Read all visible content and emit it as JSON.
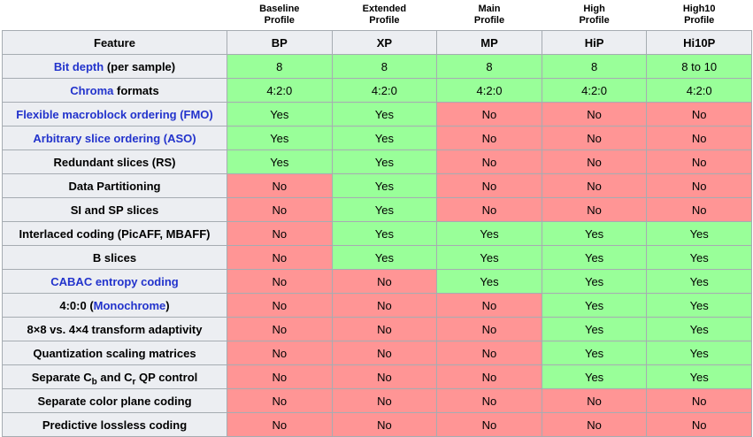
{
  "colors": {
    "yes_bg": "#99ff99",
    "no_bg": "#ff9595",
    "header_bg": "#eceef2",
    "border": "#a6acb2",
    "link": "#2233cc"
  },
  "table": {
    "feature_header": "Feature",
    "columns": [
      {
        "title": "Baseline\nProfile",
        "abbr": "BP"
      },
      {
        "title": "Extended\nProfile",
        "abbr": "XP"
      },
      {
        "title": "Main\nProfile",
        "abbr": "MP"
      },
      {
        "title": "High\nProfile",
        "abbr": "HiP"
      },
      {
        "title": "High10\nProfile",
        "abbr": "Hi10P"
      }
    ],
    "rows": [
      {
        "feature": [
          {
            "t": "Bit depth",
            "link": true
          },
          {
            "t": " (per sample)"
          }
        ],
        "values": [
          "8",
          "8",
          "8",
          "8",
          "8 to 10"
        ]
      },
      {
        "feature": [
          {
            "t": "Chroma",
            "link": true
          },
          {
            "t": " formats"
          }
        ],
        "values": [
          "4:2:0",
          "4:2:0",
          "4:2:0",
          "4:2:0",
          "4:2:0"
        ]
      },
      {
        "feature": [
          {
            "t": "Flexible macroblock ordering (FMO)",
            "link": true
          }
        ],
        "values": [
          "Yes",
          "Yes",
          "No",
          "No",
          "No"
        ]
      },
      {
        "feature": [
          {
            "t": "Arbitrary slice ordering (ASO)",
            "link": true
          }
        ],
        "values": [
          "Yes",
          "Yes",
          "No",
          "No",
          "No"
        ]
      },
      {
        "feature": [
          {
            "t": "Redundant slices (RS)"
          }
        ],
        "values": [
          "Yes",
          "Yes",
          "No",
          "No",
          "No"
        ]
      },
      {
        "feature": [
          {
            "t": "Data Partitioning"
          }
        ],
        "values": [
          "No",
          "Yes",
          "No",
          "No",
          "No"
        ]
      },
      {
        "feature": [
          {
            "t": "SI and SP slices"
          }
        ],
        "values": [
          "No",
          "Yes",
          "No",
          "No",
          "No"
        ]
      },
      {
        "feature": [
          {
            "t": "Interlaced coding (PicAFF, MBAFF)"
          }
        ],
        "values": [
          "No",
          "Yes",
          "Yes",
          "Yes",
          "Yes"
        ]
      },
      {
        "feature": [
          {
            "t": "B slices"
          }
        ],
        "values": [
          "No",
          "Yes",
          "Yes",
          "Yes",
          "Yes"
        ]
      },
      {
        "feature": [
          {
            "t": "CABAC entropy coding",
            "link": true
          }
        ],
        "values": [
          "No",
          "No",
          "Yes",
          "Yes",
          "Yes"
        ]
      },
      {
        "feature": [
          {
            "t": "4:0:0 ("
          },
          {
            "t": "Monochrome",
            "link": true
          },
          {
            "t": ")"
          }
        ],
        "values": [
          "No",
          "No",
          "No",
          "Yes",
          "Yes"
        ]
      },
      {
        "feature": [
          {
            "t": "8×8 vs. 4×4 transform adaptivity"
          }
        ],
        "values": [
          "No",
          "No",
          "No",
          "Yes",
          "Yes"
        ]
      },
      {
        "feature": [
          {
            "t": "Quantization scaling matrices"
          }
        ],
        "values": [
          "No",
          "No",
          "No",
          "Yes",
          "Yes"
        ]
      },
      {
        "feature": [
          {
            "t": "Separate C"
          },
          {
            "t": "b",
            "sub": true
          },
          {
            "t": " and C"
          },
          {
            "t": "r",
            "sub": true
          },
          {
            "t": " QP control"
          }
        ],
        "values": [
          "No",
          "No",
          "No",
          "Yes",
          "Yes"
        ]
      },
      {
        "feature": [
          {
            "t": "Separate color plane coding"
          }
        ],
        "values": [
          "No",
          "No",
          "No",
          "No",
          "No"
        ]
      },
      {
        "feature": [
          {
            "t": "Predictive lossless coding"
          }
        ],
        "values": [
          "No",
          "No",
          "No",
          "No",
          "No"
        ]
      }
    ]
  }
}
